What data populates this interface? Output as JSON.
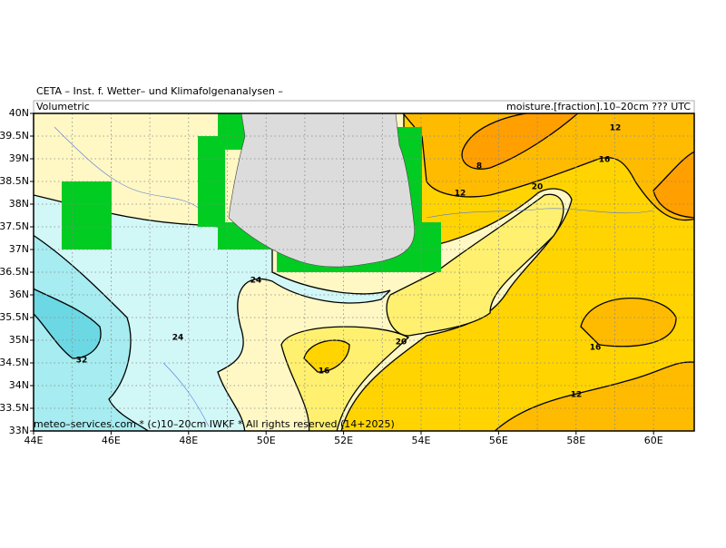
{
  "header": {
    "title": "CETA – Inst. f. Wetter– und Klimafolgenanalysen –",
    "left_label": "Volumetric",
    "right_label": "moisture.[fraction].10–20cm ??? UTC",
    "credit": "meteo–services.com * (c)10–20cm IWKF * All rights reserved (14+2025)"
  },
  "axes": {
    "lat_labels": [
      "40N",
      "39.5N",
      "39N",
      "38.5N",
      "38N",
      "37.5N",
      "37N",
      "36.5N",
      "36N",
      "35.5N",
      "35N",
      "34.5N",
      "34N",
      "33.5N",
      "33N"
    ],
    "lon_labels": [
      "44E",
      "46E",
      "48E",
      "50E",
      "52E",
      "54E",
      "56E",
      "58E",
      "60E"
    ]
  },
  "contour_labels": [
    "12",
    "8",
    "16",
    "12",
    "20",
    "24",
    "24",
    "32",
    "16",
    "20",
    "16",
    "12"
  ]
}
